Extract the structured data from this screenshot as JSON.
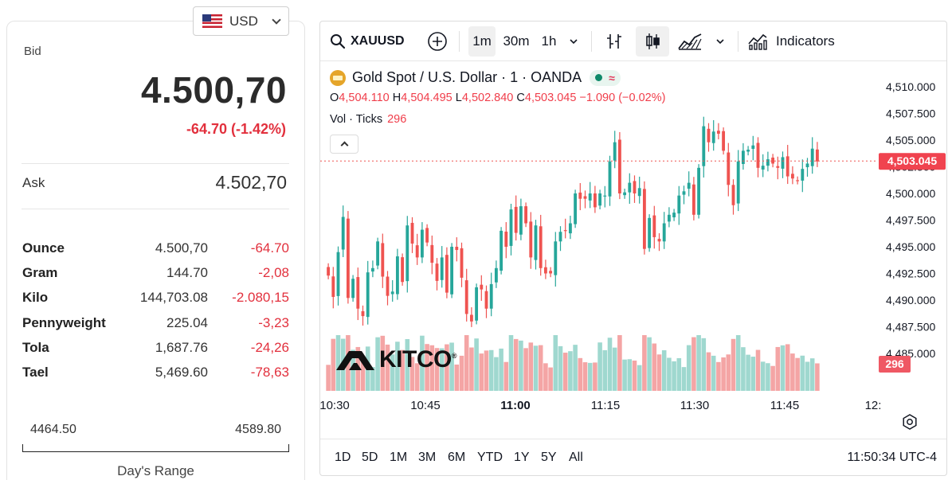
{
  "currency": {
    "code": "USD",
    "flag_icon": "us-flag-icon"
  },
  "quote": {
    "bid_label": "Bid",
    "bid": "4.500,70",
    "change": "-64.70 (-1.42%)",
    "ask_label": "Ask",
    "ask": "4.502,70"
  },
  "units": [
    {
      "name": "Ounce",
      "value": "4.500,70",
      "change": "-64.70"
    },
    {
      "name": "Gram",
      "value": "144.70",
      "change": "-2,08"
    },
    {
      "name": "Kilo",
      "value": "144,703.08",
      "change": "-2.080,15"
    },
    {
      "name": "Pennyweight",
      "value": "225.04",
      "change": "-3,23"
    },
    {
      "name": "Tola",
      "value": "1,687.76",
      "change": "-24,26"
    },
    {
      "name": "Tael",
      "value": "5,469.60",
      "change": "-78,63"
    }
  ],
  "days_range": {
    "low": "4464.50",
    "high": "4589.80",
    "label": "Day's Range"
  },
  "toolbar": {
    "symbol": "XAUUSD",
    "intervals": [
      "1m",
      "30m",
      "1h"
    ],
    "active_interval": "1m",
    "indicators_label": "Indicators"
  },
  "legend": {
    "title": "Gold Spot / U.S. Dollar · 1 · OANDA",
    "open_label": "O",
    "open": "4,504.110",
    "high_label": "H",
    "high": "4,504.495",
    "low_label": "L",
    "low": "4,502.840",
    "close_label": "C",
    "close": "4,503.045",
    "change": "−1.090 (−0.02%)",
    "vol_label": "Vol · Ticks",
    "vol_value": "296"
  },
  "watermark": "KITCO",
  "price_scale": {
    "ticks": [
      "4,510.000",
      "4,507.500",
      "4,505.000",
      "4,502.500",
      "4,500.000",
      "4,497.500",
      "4,495.000",
      "4,492.500",
      "4,490.000",
      "4,487.500",
      "4,485.000"
    ],
    "tick_values": [
      4510,
      4507.5,
      4505,
      4502.5,
      4500,
      4497.5,
      4495,
      4492.5,
      4490,
      4487.5,
      4485
    ],
    "current_price_label": "4,503.045",
    "current_price": 4503.045,
    "volume_label": "296"
  },
  "time_axis": {
    "labels": [
      "10:30",
      "10:45",
      "11:00",
      "11:15",
      "11:30",
      "11:45",
      "12:"
    ],
    "bold_label": "11:00"
  },
  "range_buttons": [
    "1D",
    "5D",
    "1M",
    "3M",
    "6M",
    "YTD",
    "1Y",
    "5Y",
    "All"
  ],
  "clock": "11:50:34 UTC-4",
  "colors": {
    "up": "#26a69a",
    "down": "#ef5350",
    "up_vol": "#9fd8cf",
    "down_vol": "#f4a5a5",
    "negative_text": "#e2303d"
  },
  "chart_data": {
    "type": "candlestick",
    "symbol": "XAUUSD",
    "interval": "1m",
    "price_range": [
      4484,
      4511
    ],
    "x_start": "10:30",
    "close_series": [
      4492.3,
      4490.3,
      4494.5,
      4497.8,
      4490.2,
      4492.0,
      4489.2,
      4488.5,
      4492.6,
      4493.0,
      4495.5,
      4492.2,
      4490.4,
      4490.8,
      4494.1,
      4491.7,
      4497.0,
      4495.3,
      4494.0,
      4496.6,
      4495.4,
      4493.5,
      4491.8,
      4494.0,
      4490.7,
      4495.0,
      4494.7,
      4492.1,
      4488.7,
      4488.0,
      4491.2,
      4491.0,
      4489.2,
      4491.5,
      4493.0,
      4496.5,
      4495.0,
      4498.5,
      4496.3,
      4498.8,
      4497.2,
      4494.0,
      4497.0,
      4493.0,
      4492.5,
      4492.5,
      4495.5,
      4496.4,
      4496.5,
      4497.2,
      4500.0,
      4499.5,
      4499.5,
      4500.0,
      4498.7,
      4500.0,
      4499.8,
      4503.0,
      4504.8,
      4500.0,
      4500.1,
      4501.0,
      4500.0,
      4500.5,
      4494.8,
      4497.7,
      4495.9,
      4495.5,
      4497.2,
      4498.0,
      4498.2,
      4499.8,
      4500.2,
      4501.0,
      4498.0,
      4502.4,
      4506.3,
      4504.8,
      4505.8,
      4505.6,
      4504.0,
      4500.8,
      4498.9,
      4503.0,
      4504.0,
      4504.1,
      4504.5,
      4502.4,
      4502.6,
      4503.2,
      4502.8,
      4502.4,
      4503.4,
      4501.6,
      4501.4,
      4501.2,
      4502.3,
      4502.8,
      4504.2,
      4503.0
    ],
    "volume_max": 300
  }
}
